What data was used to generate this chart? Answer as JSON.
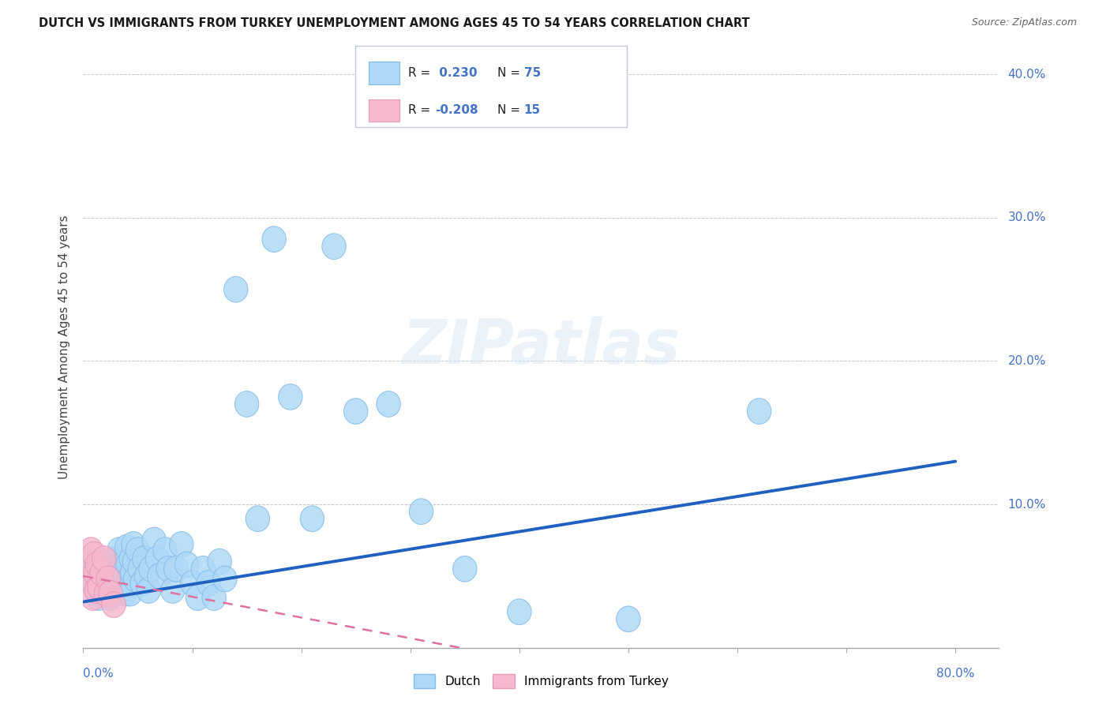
{
  "title": "DUTCH VS IMMIGRANTS FROM TURKEY UNEMPLOYMENT AMONG AGES 45 TO 54 YEARS CORRELATION CHART",
  "source": "Source: ZipAtlas.com",
  "ylabel": "Unemployment Among Ages 45 to 54 years",
  "watermark": "ZIPatlas",
  "legend_dutch_r": "0.230",
  "legend_dutch_n": "75",
  "legend_turkey_r": "-0.208",
  "legend_turkey_n": "15",
  "dutch_color": "#add8f7",
  "turkey_color": "#f5b8ce",
  "dutch_edge_color": "#85bce8",
  "turkey_edge_color": "#e898b8",
  "dutch_line_color": "#2060c0",
  "turkey_line_color": "#e070a0",
  "background_color": "#ffffff",
  "grid_color": "#c8c8c8",
  "text_blue": "#4472c4",
  "xlim": [
    0.0,
    0.84
  ],
  "ylim": [
    0.0,
    0.42
  ],
  "yticks": [
    0.0,
    0.1,
    0.2,
    0.3,
    0.4
  ],
  "ytick_labels": [
    "",
    "10.0%",
    "20.0%",
    "30.0%",
    "40.0%"
  ],
  "dutch_line_x0": 0.0,
  "dutch_line_y0": 0.032,
  "dutch_line_x1": 0.8,
  "dutch_line_y1": 0.13,
  "turkey_line_x0": 0.0,
  "turkey_line_y0": 0.05,
  "turkey_line_x1": 0.38,
  "turkey_line_y1": -0.005,
  "dutch_x": [
    0.005,
    0.008,
    0.01,
    0.012,
    0.013,
    0.014,
    0.015,
    0.016,
    0.017,
    0.018,
    0.019,
    0.02,
    0.021,
    0.022,
    0.023,
    0.024,
    0.025,
    0.026,
    0.027,
    0.028,
    0.03,
    0.031,
    0.032,
    0.033,
    0.034,
    0.035,
    0.036,
    0.037,
    0.038,
    0.04,
    0.041,
    0.042,
    0.043,
    0.044,
    0.045,
    0.046,
    0.047,
    0.048,
    0.05,
    0.052,
    0.054,
    0.056,
    0.058,
    0.06,
    0.062,
    0.065,
    0.068,
    0.07,
    0.075,
    0.078,
    0.082,
    0.085,
    0.09,
    0.095,
    0.1,
    0.105,
    0.11,
    0.115,
    0.12,
    0.125,
    0.13,
    0.14,
    0.15,
    0.16,
    0.175,
    0.19,
    0.21,
    0.23,
    0.25,
    0.28,
    0.31,
    0.35,
    0.4,
    0.5,
    0.62
  ],
  "dutch_y": [
    0.06,
    0.05,
    0.045,
    0.055,
    0.04,
    0.035,
    0.048,
    0.038,
    0.042,
    0.052,
    0.043,
    0.058,
    0.048,
    0.055,
    0.045,
    0.035,
    0.05,
    0.04,
    0.038,
    0.055,
    0.062,
    0.052,
    0.042,
    0.068,
    0.055,
    0.045,
    0.058,
    0.048,
    0.038,
    0.07,
    0.058,
    0.048,
    0.038,
    0.062,
    0.052,
    0.072,
    0.06,
    0.048,
    0.068,
    0.055,
    0.045,
    0.062,
    0.05,
    0.04,
    0.055,
    0.075,
    0.062,
    0.05,
    0.068,
    0.055,
    0.04,
    0.055,
    0.072,
    0.058,
    0.045,
    0.035,
    0.055,
    0.045,
    0.035,
    0.06,
    0.048,
    0.25,
    0.17,
    0.09,
    0.285,
    0.175,
    0.09,
    0.28,
    0.165,
    0.17,
    0.095,
    0.055,
    0.025,
    0.02,
    0.165
  ],
  "turkey_x": [
    0.005,
    0.007,
    0.008,
    0.009,
    0.01,
    0.011,
    0.012,
    0.013,
    0.015,
    0.017,
    0.019,
    0.021,
    0.023,
    0.025,
    0.028
  ],
  "turkey_y": [
    0.058,
    0.068,
    0.045,
    0.035,
    0.065,
    0.052,
    0.04,
    0.058,
    0.042,
    0.052,
    0.062,
    0.038,
    0.048,
    0.038,
    0.03
  ]
}
